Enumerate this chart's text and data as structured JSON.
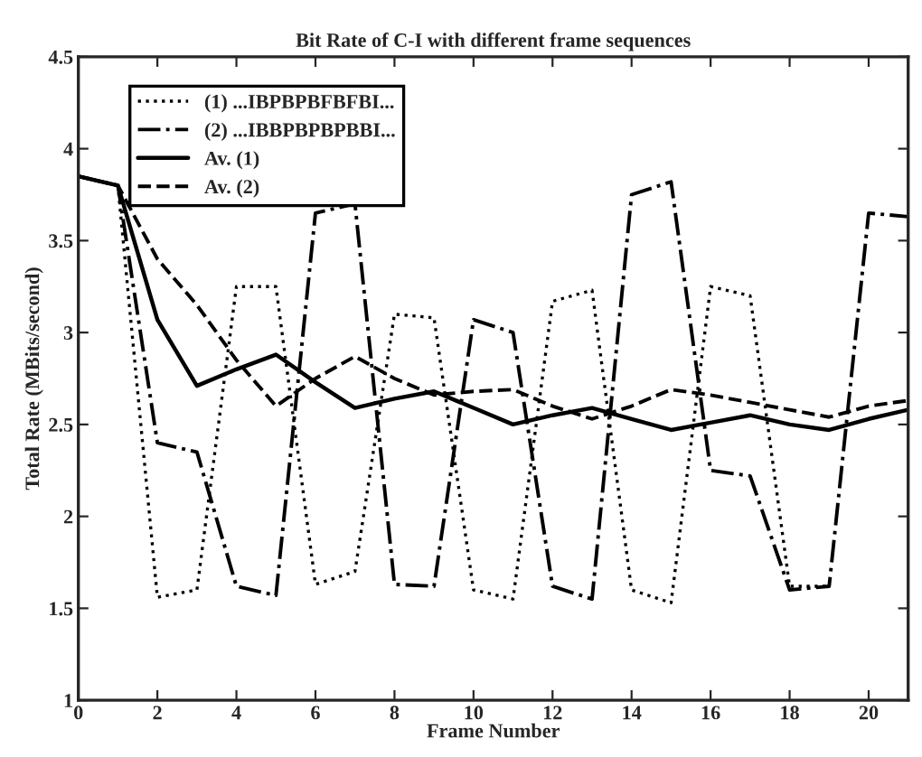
{
  "chart_data": {
    "type": "line",
    "title": "Bit Rate of C-I with different frame sequences",
    "xlabel": "Frame Number",
    "ylabel": "Total Rate (MBits/second)",
    "x": [
      0,
      1,
      2,
      3,
      4,
      5,
      6,
      7,
      8,
      9,
      10,
      11,
      12,
      13,
      14,
      15,
      16,
      17,
      18,
      19,
      20,
      21
    ],
    "series": [
      {
        "name": "(1) ...IBPBPBFBFBI...",
        "color": "#000000",
        "line_style": "dotted",
        "x": [
          0,
          1,
          2,
          3,
          4,
          5,
          6,
          7,
          8,
          9,
          10,
          11,
          12,
          13,
          14,
          15,
          16,
          17,
          18,
          19
        ],
        "values": [
          3.85,
          3.8,
          1.56,
          1.6,
          3.25,
          3.25,
          1.63,
          1.7,
          3.1,
          3.08,
          1.6,
          1.55,
          3.17,
          3.23,
          1.6,
          1.53,
          3.25,
          3.2,
          1.62,
          1.62
        ]
      },
      {
        "name": "(2) ...IBBPBPBPBBI...",
        "color": "#000000",
        "line_style": "dashdot",
        "values": [
          3.85,
          3.8,
          2.4,
          2.35,
          1.62,
          1.57,
          3.65,
          3.7,
          1.63,
          1.62,
          3.07,
          3.0,
          1.62,
          1.55,
          3.75,
          3.82,
          2.25,
          2.22,
          1.6,
          1.62,
          3.65,
          3.63
        ]
      },
      {
        "name": "Av. (1)",
        "color": "#000000",
        "line_style": "solid",
        "values": [
          3.85,
          3.8,
          3.07,
          2.71,
          2.8,
          2.88,
          2.73,
          2.59,
          2.64,
          2.68,
          2.59,
          2.5,
          2.55,
          2.59,
          2.53,
          2.47,
          2.51,
          2.55,
          2.5,
          2.47,
          2.53,
          2.58
        ]
      },
      {
        "name": "Av. (2)",
        "color": "#000000",
        "line_style": "dashed",
        "values": [
          3.85,
          3.8,
          3.4,
          3.15,
          2.85,
          2.6,
          2.75,
          2.87,
          2.75,
          2.66,
          2.68,
          2.69,
          2.6,
          2.53,
          2.6,
          2.69,
          2.66,
          2.62,
          2.58,
          2.54,
          2.6,
          2.63
        ]
      }
    ],
    "xlim": [
      0,
      21
    ],
    "xticks": [
      0,
      2,
      4,
      6,
      8,
      10,
      12,
      14,
      16,
      18,
      20
    ],
    "ylim": [
      1,
      4.5
    ],
    "yticks": [
      1,
      1.5,
      2,
      2.5,
      3,
      3.5,
      4,
      4.5
    ],
    "grid": false,
    "legend": "top left"
  }
}
